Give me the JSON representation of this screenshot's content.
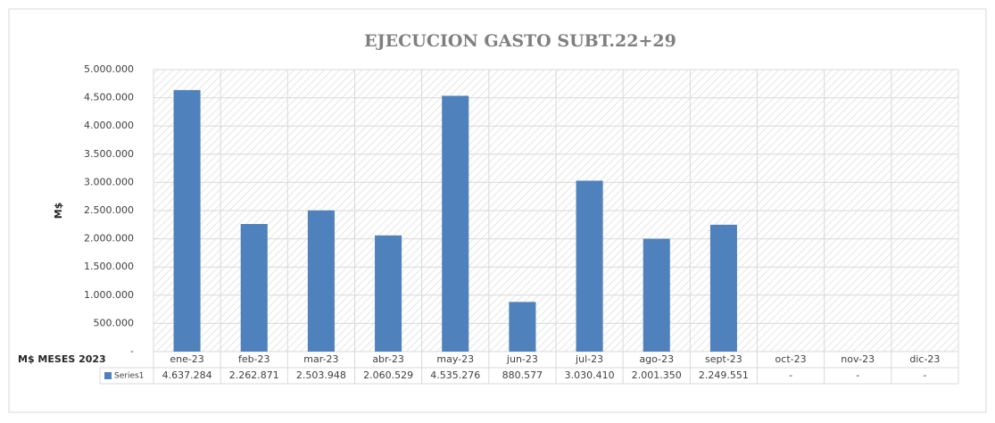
{
  "chart_data": {
    "type": "bar",
    "title": "EJECUCION GASTO SUBT.22+29",
    "y_label": "M$",
    "x_label": "M$ MESES 2023",
    "categories": [
      "ene-23",
      "feb-23",
      "mar-23",
      "abr-23",
      "may-23",
      "jun-23",
      "jul-23",
      "ago-23",
      "sept-23",
      "oct-23",
      "nov-23",
      "dic-23"
    ],
    "series": [
      {
        "name": "Series1",
        "color": "#4f81bd",
        "values": [
          4637284,
          2262871,
          2503948,
          2060529,
          4535276,
          880577,
          3030410,
          2001350,
          2249551,
          0,
          0,
          0
        ],
        "value_labels": [
          "4.637.284",
          "2.262.871",
          "2.503.948",
          "2.060.529",
          "4.535.276",
          "880.577",
          "3.030.410",
          "2.001.350",
          "2.249.551",
          "-",
          "-",
          "-"
        ]
      }
    ],
    "ylim": [
      0,
      5000000
    ],
    "yticks": [
      {
        "value": 0,
        "label": "-"
      },
      {
        "value": 500000,
        "label": "500.000"
      },
      {
        "value": 1000000,
        "label": "1.000.000"
      },
      {
        "value": 1500000,
        "label": "1.500.000"
      },
      {
        "value": 2000000,
        "label": "2.000.000"
      },
      {
        "value": 2500000,
        "label": "2.500.000"
      },
      {
        "value": 3000000,
        "label": "3.000.000"
      },
      {
        "value": 3500000,
        "label": "3.500.000"
      },
      {
        "value": 4000000,
        "label": "4.000.000"
      },
      {
        "value": 4500000,
        "label": "4.500.000"
      },
      {
        "value": 5000000,
        "label": "5.000.000"
      }
    ],
    "grid": true
  }
}
